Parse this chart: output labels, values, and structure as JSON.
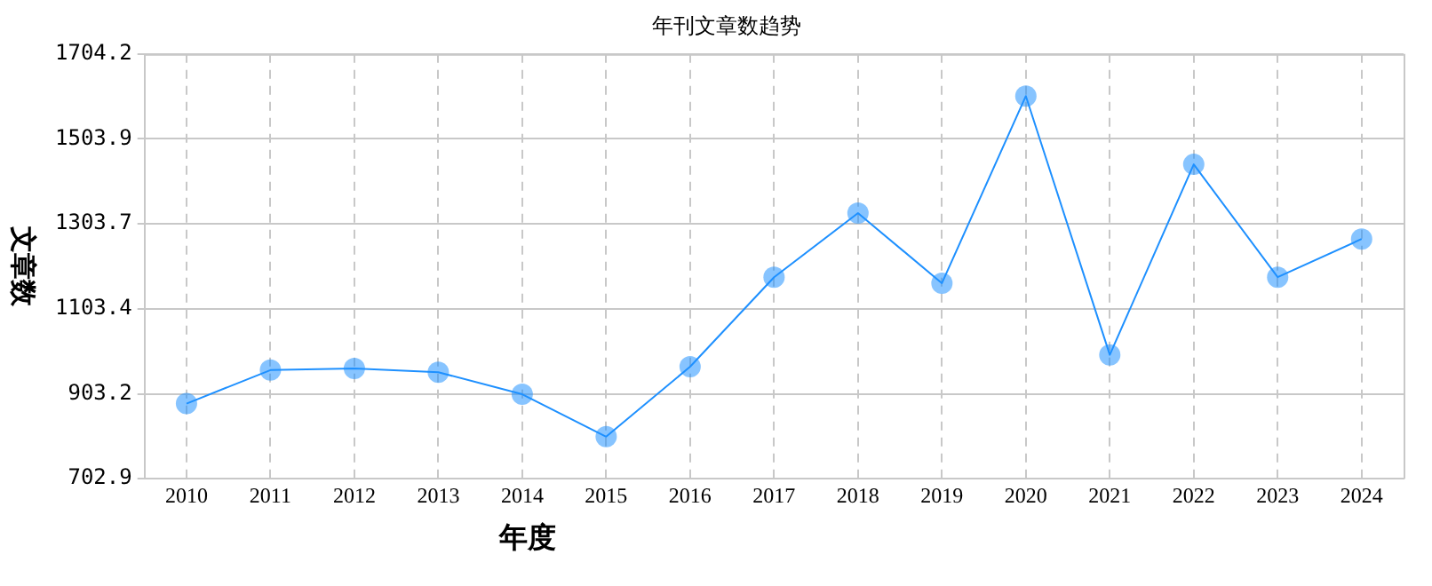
{
  "chart_data": {
    "type": "line",
    "title": "年刊文章数趋势",
    "xlabel": "年度",
    "ylabel": "文章数",
    "categories": [
      "2010",
      "2011",
      "2012",
      "2013",
      "2014",
      "2015",
      "2016",
      "2017",
      "2018",
      "2019",
      "2020",
      "2021",
      "2022",
      "2023",
      "2024"
    ],
    "series": [
      {
        "color": "#1e90ff",
        "values": [
          880,
          959,
          963,
          954,
          902,
          802,
          967,
          1178,
          1329,
          1164,
          1605,
          995,
          1444,
          1178,
          1268
        ]
      }
    ],
    "ylim": [
      702.9,
      1704.2
    ],
    "yticks": [
      702.9,
      903.2,
      1103.4,
      1303.7,
      1503.9,
      1704.2
    ],
    "grid": true,
    "legend": false,
    "marker": "circle",
    "line_style": "solid"
  }
}
